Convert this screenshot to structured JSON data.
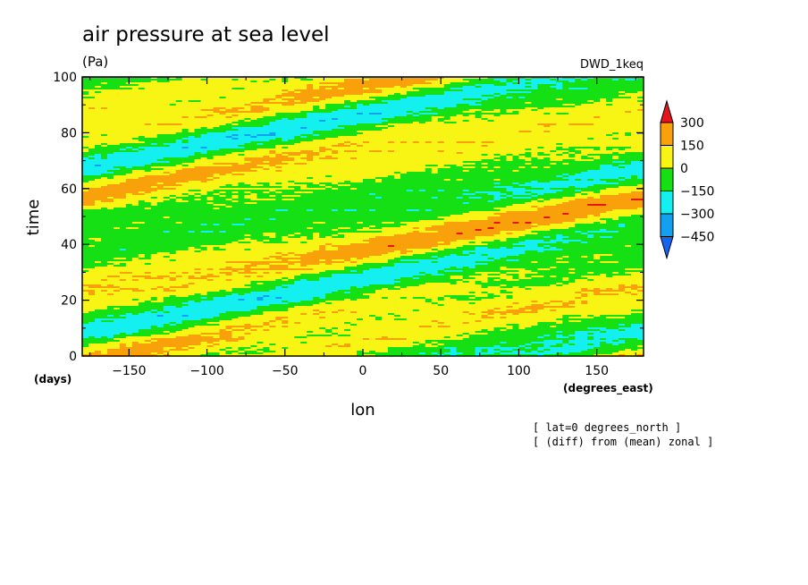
{
  "chart_data": {
    "type": "heatmap",
    "title": "air pressure at sea level",
    "units": "(Pa)",
    "run_label": "DWD_1keq",
    "xlabel": "lon",
    "ylabel": "time",
    "x_units": "(degrees_east)",
    "y_units": "(days)",
    "xlim": [
      -180,
      180
    ],
    "ylim": [
      0,
      100
    ],
    "x_ticks": [
      -150,
      -100,
      -50,
      0,
      50,
      100,
      150
    ],
    "y_ticks": [
      0,
      20,
      40,
      60,
      80,
      100
    ],
    "annotations": [
      "[ lat=0 degrees_north ]",
      "[ (diff) from (mean) zonal ]"
    ],
    "colorbar": {
      "labels": [
        "300",
        "150",
        "0",
        "−150",
        "−300",
        "−450"
      ],
      "levels": [
        300,
        150,
        0,
        -150,
        -300,
        -450
      ],
      "bins": [
        {
          "range": "> 300",
          "color": "#e8141a"
        },
        {
          "range": "150 to 300",
          "color": "#f8a10a"
        },
        {
          "range": "0 to 150",
          "color": "#f8f414"
        },
        {
          "range": "-150 to 0",
          "color": "#14e014"
        },
        {
          "range": "-300 to -150",
          "color": "#14f0f0"
        },
        {
          "range": "-450 to -300",
          "color": "#14a0f0"
        },
        {
          "range": "< -450",
          "color": "#1464f0"
        }
      ]
    },
    "pattern": {
      "description_free": true,
      "band_slope_deg_per_day": 12,
      "band_wavenumber": 1
    }
  }
}
